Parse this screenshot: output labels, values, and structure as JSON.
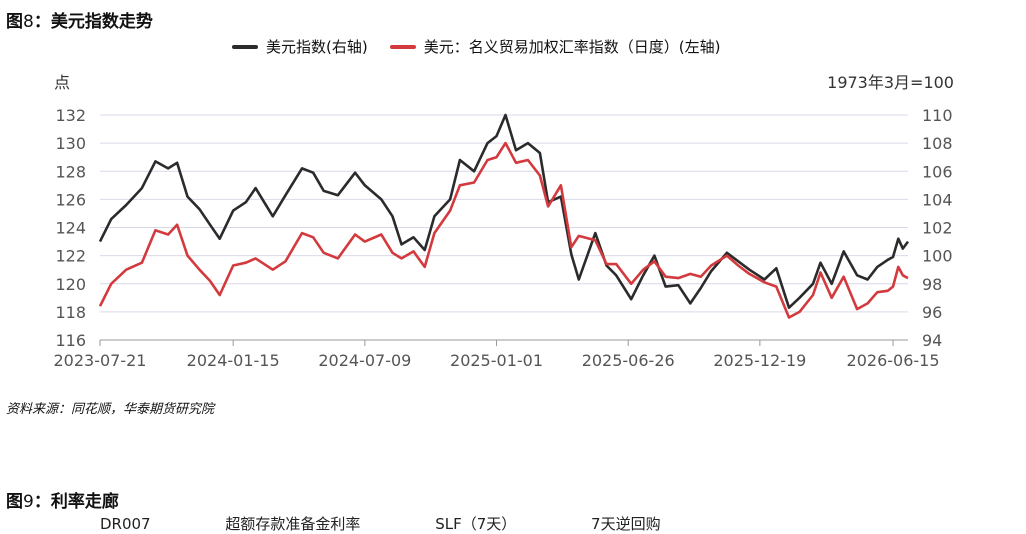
{
  "figure": {
    "prefix": "图",
    "number": "8",
    "sep": "：",
    "title": "美元指数走势"
  },
  "source_note": "资料来源：同花顺，华泰期货研究院",
  "next_figure": {
    "prefix": "图",
    "number": "9",
    "sep": "：",
    "title": "利率走廊",
    "legend_cut": [
      "DR007",
      "超额存款准备金利率",
      "SLF（7天）",
      "7天逆回购"
    ]
  },
  "colors": {
    "black_series": "#2b2b2b",
    "red_series": "#d23a3e",
    "grid": "#d9d9ea",
    "axis_text": "#555555"
  },
  "chart_data": {
    "type": "line",
    "title": "",
    "left_axis_unit_label": "点",
    "right_axis_unit_label": "1973年3月=100",
    "left_axis": {
      "ylim": [
        116,
        132
      ],
      "ticks": [
        116,
        118,
        120,
        122,
        124,
        126,
        128,
        130,
        132
      ]
    },
    "right_axis": {
      "ylim": [
        94,
        110
      ],
      "ticks": [
        94,
        96,
        98,
        100,
        102,
        104,
        106,
        108,
        110
      ]
    },
    "x_tick_labels": [
      "2023-07-21",
      "2024-01-15",
      "2024-07-09",
      "2025-01-01",
      "2025-06-26",
      "2025-12-19",
      "2026-06-15"
    ],
    "x_range": [
      "2023-07-21",
      "2026-07-05"
    ],
    "grid": "horizontal",
    "legend_position": "top",
    "series": [
      {
        "name": "美元指数(右轴)",
        "axis": "right",
        "color": "#2b2b2b",
        "points": [
          [
            "2023-07-21",
            101.0
          ],
          [
            "2023-08-05",
            102.6
          ],
          [
            "2023-08-25",
            103.6
          ],
          [
            "2023-09-15",
            104.8
          ],
          [
            "2023-10-03",
            106.7
          ],
          [
            "2023-10-20",
            106.2
          ],
          [
            "2023-11-01",
            106.6
          ],
          [
            "2023-11-15",
            104.2
          ],
          [
            "2023-12-01",
            103.3
          ],
          [
            "2023-12-15",
            102.2
          ],
          [
            "2023-12-28",
            101.2
          ],
          [
            "2024-01-15",
            103.2
          ],
          [
            "2024-02-01",
            103.8
          ],
          [
            "2024-02-14",
            104.8
          ],
          [
            "2024-03-08",
            102.8
          ],
          [
            "2024-03-25",
            104.3
          ],
          [
            "2024-04-16",
            106.2
          ],
          [
            "2024-05-01",
            105.9
          ],
          [
            "2024-05-15",
            104.6
          ],
          [
            "2024-06-03",
            104.3
          ],
          [
            "2024-06-26",
            105.9
          ],
          [
            "2024-07-09",
            105.0
          ],
          [
            "2024-07-31",
            104.0
          ],
          [
            "2024-08-15",
            102.8
          ],
          [
            "2024-08-27",
            100.8
          ],
          [
            "2024-09-12",
            101.3
          ],
          [
            "2024-09-27",
            100.4
          ],
          [
            "2024-10-10",
            102.8
          ],
          [
            "2024-10-31",
            104.0
          ],
          [
            "2024-11-13",
            106.8
          ],
          [
            "2024-12-02",
            106.0
          ],
          [
            "2024-12-20",
            108.0
          ],
          [
            "2025-01-01",
            108.5
          ],
          [
            "2025-01-13",
            110.0
          ],
          [
            "2025-01-27",
            107.5
          ],
          [
            "2025-02-12",
            108.0
          ],
          [
            "2025-02-28",
            107.3
          ],
          [
            "2025-03-11",
            103.8
          ],
          [
            "2025-03-28",
            104.2
          ],
          [
            "2025-04-11",
            100.1
          ],
          [
            "2025-04-21",
            98.3
          ],
          [
            "2025-05-13",
            101.6
          ],
          [
            "2025-05-28",
            99.3
          ],
          [
            "2025-06-10",
            98.6
          ],
          [
            "2025-06-30",
            96.9
          ],
          [
            "2025-07-16",
            98.6
          ],
          [
            "2025-07-31",
            100.0
          ],
          [
            "2025-08-15",
            97.8
          ],
          [
            "2025-09-01",
            97.9
          ],
          [
            "2025-09-17",
            96.6
          ],
          [
            "2025-10-01",
            97.7
          ],
          [
            "2025-10-15",
            98.9
          ],
          [
            "2025-11-05",
            100.2
          ],
          [
            "2025-11-20",
            99.6
          ],
          [
            "2025-12-05",
            99.0
          ],
          [
            "2025-12-25",
            98.3
          ],
          [
            "2026-01-10",
            99.1
          ],
          [
            "2026-01-27",
            96.3
          ],
          [
            "2026-02-10",
            97.0
          ],
          [
            "2026-02-28",
            98.0
          ],
          [
            "2026-03-10",
            99.5
          ],
          [
            "2026-03-25",
            98.0
          ],
          [
            "2026-04-10",
            100.3
          ],
          [
            "2026-04-28",
            98.6
          ],
          [
            "2026-05-12",
            98.3
          ],
          [
            "2026-05-25",
            99.2
          ],
          [
            "2026-06-08",
            99.7
          ],
          [
            "2026-06-15",
            99.9
          ],
          [
            "2026-06-22",
            101.2
          ],
          [
            "2026-06-28",
            100.5
          ],
          [
            "2026-07-05",
            101.0
          ]
        ]
      },
      {
        "name": "美元：名义贸易加权汇率指数（日度）(左轴)",
        "axis": "left",
        "color": "#d23a3e",
        "points": [
          [
            "2023-07-21",
            118.4
          ],
          [
            "2023-08-05",
            120.0
          ],
          [
            "2023-08-25",
            121.0
          ],
          [
            "2023-09-15",
            121.5
          ],
          [
            "2023-10-03",
            123.8
          ],
          [
            "2023-10-20",
            123.5
          ],
          [
            "2023-11-01",
            124.2
          ],
          [
            "2023-11-15",
            122.0
          ],
          [
            "2023-12-01",
            121.0
          ],
          [
            "2023-12-15",
            120.2
          ],
          [
            "2023-12-28",
            119.2
          ],
          [
            "2024-01-15",
            121.3
          ],
          [
            "2024-02-01",
            121.5
          ],
          [
            "2024-02-14",
            121.8
          ],
          [
            "2024-03-08",
            121.0
          ],
          [
            "2024-03-25",
            121.6
          ],
          [
            "2024-04-16",
            123.6
          ],
          [
            "2024-05-01",
            123.3
          ],
          [
            "2024-05-15",
            122.2
          ],
          [
            "2024-06-03",
            121.8
          ],
          [
            "2024-06-26",
            123.5
          ],
          [
            "2024-07-09",
            123.0
          ],
          [
            "2024-07-31",
            123.5
          ],
          [
            "2024-08-15",
            122.2
          ],
          [
            "2024-08-27",
            121.8
          ],
          [
            "2024-09-12",
            122.3
          ],
          [
            "2024-09-27",
            121.2
          ],
          [
            "2024-10-10",
            123.6
          ],
          [
            "2024-10-31",
            125.2
          ],
          [
            "2024-11-13",
            127.0
          ],
          [
            "2024-12-02",
            127.2
          ],
          [
            "2024-12-20",
            128.8
          ],
          [
            "2025-01-01",
            129.0
          ],
          [
            "2025-01-13",
            130.0
          ],
          [
            "2025-01-27",
            128.6
          ],
          [
            "2025-02-12",
            128.8
          ],
          [
            "2025-02-28",
            127.7
          ],
          [
            "2025-03-11",
            125.5
          ],
          [
            "2025-03-28",
            127.0
          ],
          [
            "2025-04-11",
            122.6
          ],
          [
            "2025-04-21",
            123.4
          ],
          [
            "2025-05-13",
            123.1
          ],
          [
            "2025-05-28",
            121.4
          ],
          [
            "2025-06-10",
            121.4
          ],
          [
            "2025-06-30",
            120.0
          ],
          [
            "2025-07-16",
            121.0
          ],
          [
            "2025-07-31",
            121.6
          ],
          [
            "2025-08-15",
            120.5
          ],
          [
            "2025-09-01",
            120.4
          ],
          [
            "2025-09-17",
            120.7
          ],
          [
            "2025-10-01",
            120.5
          ],
          [
            "2025-10-15",
            121.3
          ],
          [
            "2025-11-05",
            122.0
          ],
          [
            "2025-11-20",
            121.3
          ],
          [
            "2025-12-05",
            120.7
          ],
          [
            "2025-12-25",
            120.1
          ],
          [
            "2026-01-10",
            119.8
          ],
          [
            "2026-01-27",
            117.6
          ],
          [
            "2026-02-10",
            118.0
          ],
          [
            "2026-02-28",
            119.2
          ],
          [
            "2026-03-10",
            120.8
          ],
          [
            "2026-03-25",
            119.0
          ],
          [
            "2026-04-10",
            120.5
          ],
          [
            "2026-04-28",
            118.2
          ],
          [
            "2026-05-12",
            118.6
          ],
          [
            "2026-05-25",
            119.4
          ],
          [
            "2026-06-08",
            119.5
          ],
          [
            "2026-06-15",
            119.8
          ],
          [
            "2026-06-22",
            121.2
          ],
          [
            "2026-06-28",
            120.6
          ],
          [
            "2026-07-05",
            120.4
          ]
        ]
      }
    ]
  }
}
